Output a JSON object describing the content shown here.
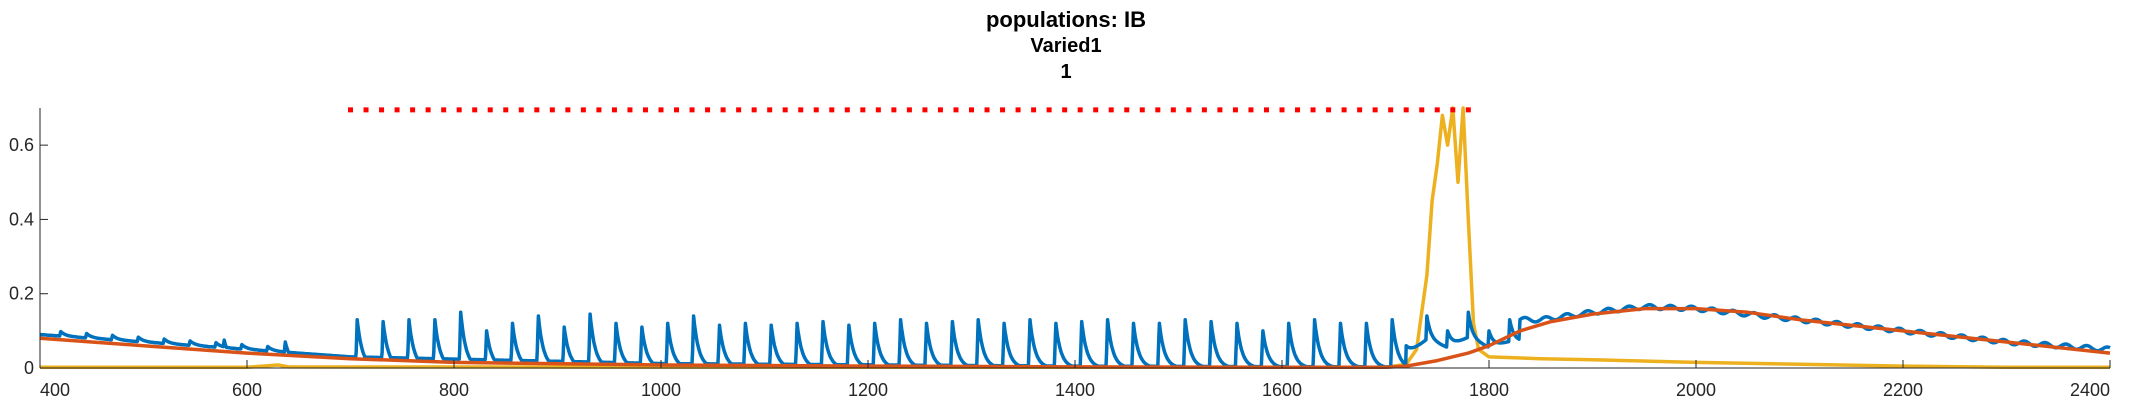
{
  "chart_data": {
    "type": "line",
    "title": "populations: IB",
    "subtitle_lines": [
      "Varied1",
      "1"
    ],
    "xlabel": "",
    "ylabel": "",
    "xlim": [
      400,
      2400
    ],
    "ylim": [
      0,
      0.7
    ],
    "xticks": [
      400,
      600,
      800,
      1000,
      1200,
      1400,
      1600,
      1800,
      2000,
      2200,
      2400
    ],
    "xtick_labels": [
      "400",
      "600",
      "800",
      "1000",
      "1200",
      "1400",
      "1600",
      "1800",
      "2000",
      "2200",
      "2400"
    ],
    "yticks": [
      0,
      0.2,
      0.4,
      0.6
    ],
    "ytick_labels": [
      "0",
      "0.2",
      "0.4",
      "0.6"
    ],
    "grid": false,
    "legend": "none",
    "colors": {
      "blue": "#0072BD",
      "orange": "#D95319",
      "yellow": "#EDB120",
      "marker": "#FF0000"
    },
    "stimulus_markers": {
      "y": 0.695,
      "x_start": 700,
      "x_end": 1780,
      "spacing": 15
    },
    "series": [
      {
        "color_key": "blue",
        "description": "decaying bursts",
        "baseline_points": [
          [
            400,
            0.09
          ],
          [
            700,
            0.03
          ],
          [
            1000,
            0.012
          ],
          [
            1400,
            0.005
          ],
          [
            1700,
            0.003
          ]
        ],
        "spikes_a": {
          "x_start": 420,
          "x_end": 640,
          "spacing": 25,
          "amplitude": 0.012
        },
        "spikes_b": {
          "x_start": 575,
          "x_end": 640,
          "values": [
            [
              578,
              0.075
            ],
            [
              604,
              0.05
            ],
            [
              637,
              0.07
            ]
          ]
        },
        "spikes_c": {
          "x_start": 705,
          "x_end": 1715,
          "spacing": 25,
          "peaks": [
            0.13,
            0.125,
            0.13,
            0.13,
            0.15,
            0.1,
            0.12,
            0.14,
            0.11,
            0.145,
            0.12,
            0.11,
            0.12,
            0.14,
            0.115,
            0.12,
            0.115,
            0.12,
            0.125,
            0.115,
            0.12,
            0.13,
            0.12,
            0.125,
            0.13,
            0.12,
            0.13,
            0.12,
            0.125,
            0.13,
            0.12,
            0.12,
            0.13,
            0.125,
            0.12,
            0.1,
            0.12,
            0.13,
            0.12,
            0.12,
            0.13
          ]
        },
        "late_points": [
          [
            1720,
            0.06
          ],
          [
            1740,
            0.14
          ],
          [
            1760,
            0.1
          ],
          [
            1780,
            0.15
          ],
          [
            1800,
            0.1
          ],
          [
            1820,
            0.13
          ],
          [
            1850,
            0.13
          ],
          [
            1900,
            0.15
          ],
          [
            1950,
            0.165
          ],
          [
            2000,
            0.16
          ],
          [
            2100,
            0.13
          ],
          [
            2200,
            0.1
          ],
          [
            2300,
            0.07
          ],
          [
            2400,
            0.05
          ]
        ]
      },
      {
        "color_key": "orange",
        "description": "slow envelope",
        "points": [
          [
            400,
            0.08
          ],
          [
            500,
            0.06
          ],
          [
            600,
            0.04
          ],
          [
            700,
            0.025
          ],
          [
            800,
            0.015
          ],
          [
            1000,
            0.008
          ],
          [
            1200,
            0.005
          ],
          [
            1400,
            0.003
          ],
          [
            1600,
            0.002
          ],
          [
            1700,
            0.002
          ],
          [
            1720,
            0.005
          ],
          [
            1750,
            0.02
          ],
          [
            1780,
            0.04
          ],
          [
            1800,
            0.06
          ],
          [
            1830,
            0.1
          ],
          [
            1860,
            0.125
          ],
          [
            1900,
            0.145
          ],
          [
            1950,
            0.16
          ],
          [
            2000,
            0.16
          ],
          [
            2050,
            0.15
          ],
          [
            2100,
            0.13
          ],
          [
            2200,
            0.1
          ],
          [
            2300,
            0.07
          ],
          [
            2400,
            0.04
          ]
        ]
      },
      {
        "color_key": "yellow",
        "description": "fast activity",
        "points": [
          [
            400,
            0.002
          ],
          [
            600,
            0.002
          ],
          [
            630,
            0.008
          ],
          [
            640,
            0.003
          ],
          [
            1300,
            0.002
          ],
          [
            1700,
            0.002
          ],
          [
            1720,
            0.01
          ],
          [
            1730,
            0.05
          ],
          [
            1740,
            0.25
          ],
          [
            1745,
            0.45
          ],
          [
            1750,
            0.55
          ],
          [
            1755,
            0.68
          ],
          [
            1760,
            0.6
          ],
          [
            1765,
            0.7
          ],
          [
            1770,
            0.5
          ],
          [
            1775,
            0.7
          ],
          [
            1780,
            0.4
          ],
          [
            1785,
            0.12
          ],
          [
            1790,
            0.05
          ],
          [
            1800,
            0.03
          ],
          [
            1850,
            0.025
          ],
          [
            1900,
            0.022
          ],
          [
            2000,
            0.015
          ],
          [
            2100,
            0.01
          ],
          [
            2200,
            0.005
          ],
          [
            2300,
            0.002
          ],
          [
            2400,
            0.002
          ]
        ]
      }
    ]
  }
}
